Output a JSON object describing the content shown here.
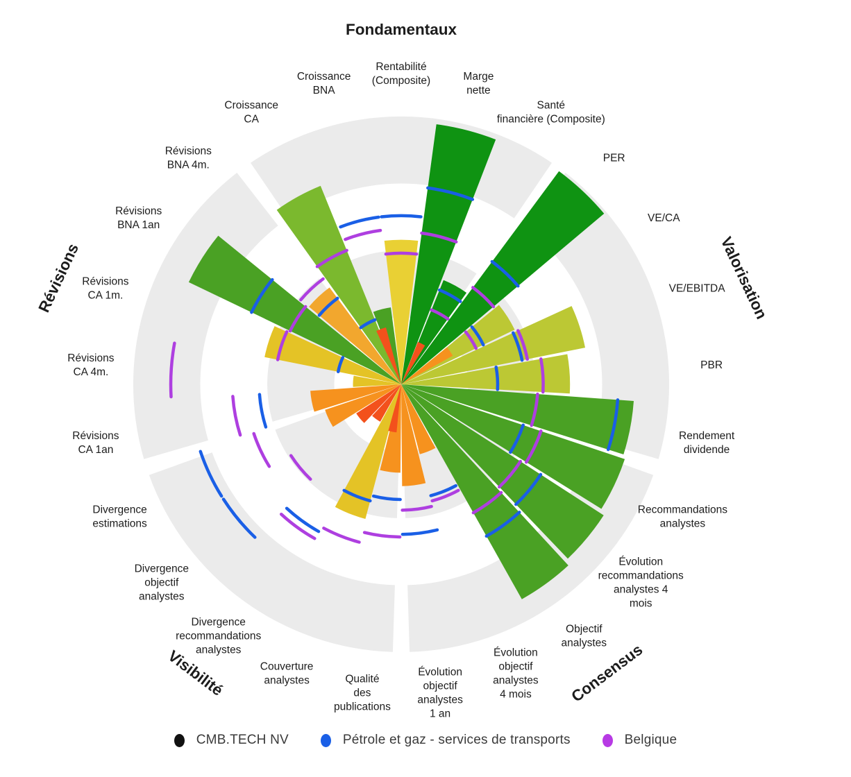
{
  "legend": {
    "items": [
      {
        "label": "CMB.TECH NV",
        "color": "#111111",
        "role": "company"
      },
      {
        "label": "Pétrole et gaz - services de transports",
        "color": "#1a5fe6",
        "role": "sector"
      },
      {
        "label": "Belgique",
        "color": "#b73ae4",
        "role": "country"
      }
    ]
  },
  "chart_data": {
    "type": "polar-bar (surperformance rose chart)",
    "scale": {
      "min": 0,
      "max": 100,
      "rings": [
        25,
        50,
        75,
        100
      ]
    },
    "palette": {
      "dark_green": "#0f9312",
      "med_green": "#4aa124",
      "yellow_green": "#7bb92e",
      "olive": "#bcc834",
      "yellow": "#e9d034",
      "gold": "#e4c326",
      "amber": "#f2a72e",
      "orange": "#f6921e",
      "red_orange": "#f3511c",
      "sector_blue": "#1a5fe6",
      "country_purple": "#ae3fe0",
      "ring_gray": "#ebebeb"
    },
    "series_legend": [
      "CMB.TECH NV (colored wedges)",
      "Pétrole et gaz - services de transports (blue arcs)",
      "Belgique (purple arcs)"
    ],
    "groups": [
      {
        "label": "Fondamentaux",
        "rotation": 0,
        "metrics": [
          {
            "label": "Croissance CA",
            "lines": [
              "Croissance",
              "CA"
            ],
            "company": 80,
            "sector": 26,
            "country": 54,
            "color": "yellow_green"
          },
          {
            "label": "Croissance BNA",
            "lines": [
              "Croissance",
              "BNA"
            ],
            "company": 29,
            "sector": 63,
            "country": 58,
            "color": "med_green"
          },
          {
            "label": "Rentabilité (Composite)",
            "lines": [
              "Rentabilité",
              "(Composite)"
            ],
            "company": 54,
            "sector": 63,
            "country": 49,
            "color": "yellow"
          },
          {
            "label": "Marge nette",
            "lines": [
              "Marge",
              "nette"
            ],
            "company": 98,
            "sector": 74,
            "country": 57,
            "color": "dark_green"
          },
          {
            "label": "Santé financière (Composite)",
            "lines": [
              "Santé",
              "financière (Composite)"
            ],
            "company": 42,
            "sector": 38,
            "country": 30,
            "color": "dark_green"
          }
        ]
      },
      {
        "label": "Valorisation",
        "rotation": 65,
        "metrics": [
          {
            "label": "PER",
            "lines": [
              "PER"
            ],
            "company": 99,
            "sector": 57,
            "country": 45,
            "color": "dark_green"
          },
          {
            "label": "VE/CA",
            "lines": [
              "VE/CA"
            ],
            "company": 47,
            "sector": 34,
            "country": 31,
            "color": "olive"
          },
          {
            "label": "VE/EBITDA",
            "lines": [
              "VE/EBITDA"
            ],
            "company": 70,
            "sector": 46,
            "country": 48,
            "color": "olive"
          },
          {
            "label": "PBR",
            "lines": [
              "PBR"
            ],
            "company": 63,
            "sector": 36,
            "country": 53,
            "color": "olive"
          },
          {
            "label": "Rendement dividende",
            "lines": [
              "Rendement",
              "dividende"
            ],
            "company": 87,
            "sector": 81,
            "country": 51,
            "color": "med_green"
          }
        ]
      },
      {
        "label": "Consensus",
        "rotation": -37,
        "metrics": [
          {
            "label": "Recommandations analystes",
            "lines": [
              "Recommandations",
              "analystes"
            ],
            "company": 88,
            "sector": 48,
            "country": 55,
            "color": "med_green"
          },
          {
            "label": "Évolution recommandations analystes 4 mois",
            "lines": [
              "Évolution",
              "recommandations",
              "analystes 4",
              "mois"
            ],
            "company": 90,
            "sector": 62,
            "country": 53,
            "color": "med_green"
          },
          {
            "label": "Objectif analystes",
            "lines": [
              "Objectif",
              "analystes"
            ],
            "company": 92,
            "sector": 65,
            "country": 55,
            "color": "med_green"
          },
          {
            "label": "Évolution objectif analystes 4 mois",
            "lines": [
              "Évolution",
              "objectif",
              "analystes",
              "4 mois"
            ],
            "company": 27,
            "sector": 43,
            "country": 45,
            "color": "orange"
          },
          {
            "label": "Évolution objectif analystes 1 an",
            "lines": [
              "Évolution",
              "objectif",
              "analystes",
              "1 an"
            ],
            "company": 38,
            "sector": 56,
            "country": 47,
            "color": "orange"
          }
        ]
      },
      {
        "label": "Visibilité",
        "rotation": 37,
        "metrics": [
          {
            "label": "Qualité des publications",
            "lines": [
              "Qualité",
              "des",
              "publications"
            ],
            "company": 33,
            "sector": 43,
            "country": 57,
            "color": "orange"
          },
          {
            "label": "Couverture analystes",
            "lines": [
              "Couverture",
              "analystes"
            ],
            "company": 52,
            "sector": 45,
            "country": 61,
            "color": "gold"
          },
          {
            "label": "Divergence recommandations analystes",
            "lines": [
              "Divergence",
              "recommandations",
              "analystes"
            ],
            "company": 16,
            "sector": 63,
            "country": 66,
            "color": "red_orange"
          },
          {
            "label": "Divergence objectif analystes",
            "lines": [
              "Divergence",
              "objectif",
              "analystes"
            ],
            "company": 20,
            "sector": 79,
            "country": 49,
            "color": "red_orange"
          },
          {
            "label": "Divergence estimations",
            "lines": [
              "Divergence",
              "estimations"
            ],
            "company": 30,
            "sector": 79,
            "country": 58,
            "color": "orange"
          }
        ]
      },
      {
        "label": "Révisions",
        "rotation": -65,
        "metrics": [
          {
            "label": "Révisions CA 1an",
            "lines": [
              "Révisions",
              "CA 1an"
            ],
            "company": 34,
            "sector": 53,
            "country": 63,
            "color": "orange"
          },
          {
            "label": "Révisions CA 4m.",
            "lines": [
              "Révisions",
              "CA 4m."
            ],
            "company": 18,
            "sector": null,
            "country": 86,
            "color": "gold"
          },
          {
            "label": "Révisions CA 1m.",
            "lines": [
              "Révisions",
              "CA 1m."
            ],
            "company": 52,
            "sector": 24,
            "country": 47,
            "color": "gold"
          },
          {
            "label": "Révisions BNA 1an",
            "lines": [
              "Révisions",
              "BNA 1an"
            ],
            "company": 88,
            "sector": 62,
            "country": 46,
            "color": "med_green"
          },
          {
            "label": "Révisions BNA 4m.",
            "lines": [
              "Révisions",
              "BNA 4m."
            ],
            "company": 45,
            "sector": 40,
            "country": 49,
            "color": "amber"
          }
        ]
      }
    ],
    "center_accents": [
      {
        "angle": 26.5,
        "value": 17,
        "color": "red_orange"
      },
      {
        "angle": 56.0,
        "value": 22,
        "color": "orange"
      },
      {
        "angle": 190.5,
        "value": 18,
        "color": "red_orange"
      },
      {
        "angle": 340.0,
        "value": 22,
        "color": "red_orange"
      }
    ]
  }
}
